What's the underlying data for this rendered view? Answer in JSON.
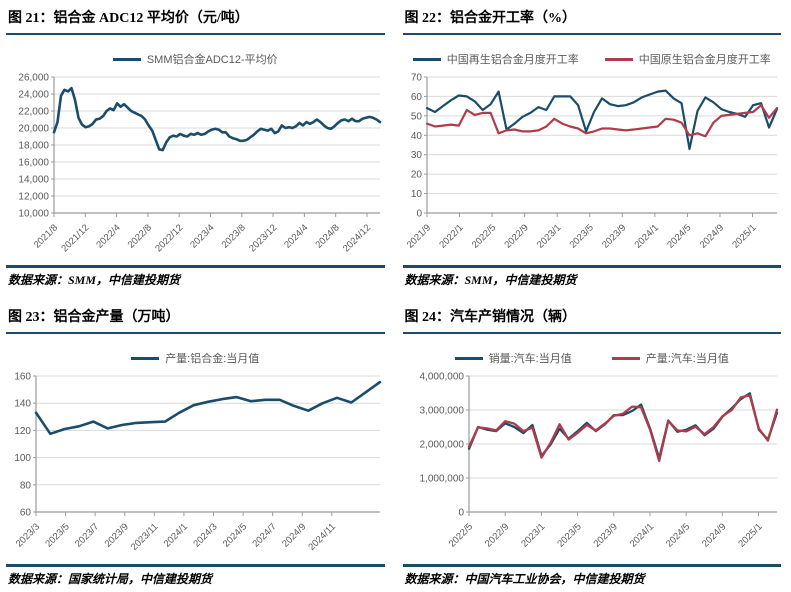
{
  "page": {
    "background": "#ffffff"
  },
  "colors": {
    "accent_blue": "#1b4d6b",
    "accent_red": "#b03b4a",
    "title_rule": "#1b4d6b",
    "grid_line": "#d9d9d9",
    "axis_line": "#9b9b9b",
    "axis_text": "#595959",
    "legend_text": "#595959"
  },
  "panels": [
    {
      "title": "图 21：铝合金 ADC12 平均价（元/吨）",
      "source": "数据来源：SMM，中信建投期货"
    },
    {
      "title": "图 22：铝合金开工率（%）",
      "source": "数据来源：SMM，中信建投期货"
    },
    {
      "title": "图 23：铝合金产量（万吨）",
      "source": "数据来源：国家统计局，中信建投期货"
    },
    {
      "title": "图 24：汽车产销情况（辆）",
      "source": "数据来源：中国汽车工业协会，中信建投期货"
    }
  ],
  "chart_data": [
    {
      "type": "line",
      "title": "铝合金 ADC12 平均价（元/吨）",
      "ylim": [
        10000,
        26000
      ],
      "y_step": 2000,
      "grid": true,
      "legend_position": "top",
      "x_labels": [
        "2021/8",
        "2021/12",
        "2022/4",
        "2022/8",
        "2022/12",
        "2023/4",
        "2023/8",
        "2023/12",
        "2024/4",
        "2024/8",
        "2024/12"
      ],
      "x_label_span": 0.96,
      "series": [
        {
          "name": "SMM铝合金ADC12-平均价",
          "color": "#1b4d6b",
          "width": 2.6,
          "values": [
            19500,
            20700,
            23800,
            24500,
            24300,
            24700,
            23300,
            21200,
            20400,
            20100,
            20200,
            20500,
            21000,
            21100,
            21400,
            22000,
            22300,
            22100,
            22900,
            22500,
            22800,
            22400,
            22000,
            21800,
            21600,
            21400,
            21000,
            20300,
            19700,
            18600,
            17500,
            17400,
            18300,
            18900,
            19100,
            19000,
            19300,
            19100,
            19000,
            19300,
            19200,
            19400,
            19200,
            19300,
            19600,
            19800,
            19900,
            19800,
            19500,
            19500,
            19000,
            18800,
            18700,
            18500,
            18500,
            18600,
            18900,
            19200,
            19600,
            19900,
            19800,
            19700,
            19900,
            19400,
            19600,
            20300,
            20000,
            20100,
            20000,
            20200,
            20600,
            20300,
            20700,
            20500,
            20700,
            21000,
            20700,
            20300,
            20000,
            19900,
            20200,
            20600,
            20900,
            21000,
            20800,
            21100,
            20800,
            20800,
            21100,
            21200,
            21300,
            21200,
            21000,
            20700
          ]
        }
      ]
    },
    {
      "type": "line",
      "title": "铝合金开工率（%）",
      "ylim": [
        0,
        70
      ],
      "y_step": 10,
      "grid": true,
      "legend_position": "top",
      "x_labels": [
        "2021/9",
        "2022/1",
        "2022/5",
        "2022/9",
        "2023/1",
        "2023/5",
        "2023/9",
        "2024/1",
        "2024/5",
        "2024/9",
        "2025/1"
      ],
      "x_label_span": 0.93,
      "series": [
        {
          "name": "中国再生铝合金月度开工率",
          "color": "#1b4d6b",
          "width": 2.2,
          "values": [
            54,
            52,
            55,
            58,
            60.5,
            60,
            57.5,
            53,
            56,
            62.5,
            43,
            46,
            49.5,
            51.5,
            54.5,
            53,
            60,
            60,
            60,
            55.5,
            42,
            52,
            59,
            56,
            55,
            55.5,
            57,
            59.5,
            61,
            62.5,
            63,
            59,
            56.5,
            33,
            52.5,
            59.5,
            57,
            53.5,
            52,
            51,
            49.5,
            55.5,
            56.5,
            44,
            53.5
          ]
        },
        {
          "name": "中国原生铝合金月度开工率",
          "color": "#b03b4a",
          "width": 2.2,
          "values": [
            46,
            44.5,
            45,
            45.5,
            45,
            53,
            50.5,
            51.5,
            51.5,
            41,
            42.5,
            43,
            42,
            42,
            42.5,
            44.5,
            48.5,
            46,
            44.5,
            43.5,
            41,
            42,
            43.5,
            43.5,
            43,
            42.5,
            43,
            43.5,
            44,
            44.5,
            48.5,
            48,
            46.5,
            40,
            41,
            39.5,
            46.5,
            50,
            50.5,
            51,
            51.5,
            52,
            55.5,
            49,
            54
          ]
        }
      ]
    },
    {
      "type": "line",
      "title": "铝合金产量（万吨）",
      "ylim": [
        60,
        160
      ],
      "y_step": 20,
      "grid": true,
      "legend_position": "top",
      "x_labels": [
        "2023/3",
        "2023/5",
        "2023/7",
        "2023/9",
        "2023/11",
        "2024/1",
        "2024/3",
        "2024/5",
        "2024/7",
        "2024/9",
        "2024/11"
      ],
      "x_label_span": 0.86,
      "series": [
        {
          "name": "产量:铝合金:当月值",
          "color": "#1b4d6b",
          "width": 2.6,
          "values": [
            133,
            117.5,
            121,
            123,
            126.5,
            121.5,
            124,
            125.5,
            126,
            126.5,
            133,
            138.5,
            141,
            143,
            144.5,
            141.5,
            142.5,
            142.5,
            138,
            134.5,
            140,
            144,
            140.5,
            148,
            155.5
          ]
        }
      ]
    },
    {
      "type": "line",
      "title": "汽车产销情况（辆）",
      "ylim": [
        0,
        4000000
      ],
      "y_step": 1000000,
      "grid": true,
      "legend_position": "top",
      "x_labels": [
        "2022/5",
        "2022/9",
        "2023/1",
        "2023/5",
        "2023/9",
        "2024/1",
        "2024/5",
        "2024/9",
        "2025/1"
      ],
      "x_label_span": 0.94,
      "series": [
        {
          "name": "销量:汽车:当月值",
          "color": "#1b4d6b",
          "width": 2.3,
          "values": [
            1860000,
            2500000,
            2420000,
            2380000,
            2610000,
            2500000,
            2320000,
            2560000,
            1650000,
            1980000,
            2450000,
            2160000,
            2380000,
            2620000,
            2380000,
            2580000,
            2850000,
            2850000,
            2970000,
            3160000,
            2440000,
            1580000,
            2690000,
            2360000,
            2420000,
            2550000,
            2260000,
            2450000,
            2810000,
            3050000,
            3320000,
            3490000,
            2420000,
            2130000,
            2920000
          ]
        },
        {
          "name": "产量:汽车:当月值",
          "color": "#b03b4a",
          "width": 2.3,
          "values": [
            1920000,
            2490000,
            2460000,
            2400000,
            2670000,
            2600000,
            2380000,
            2480000,
            1600000,
            2030000,
            2580000,
            2130000,
            2330000,
            2560000,
            2400000,
            2600000,
            2830000,
            2890000,
            3100000,
            3080000,
            2410000,
            1500000,
            2680000,
            2400000,
            2370000,
            2510000,
            2290000,
            2500000,
            2820000,
            3000000,
            3370000,
            3430000,
            2450000,
            2100000,
            3010000
          ]
        }
      ]
    }
  ]
}
